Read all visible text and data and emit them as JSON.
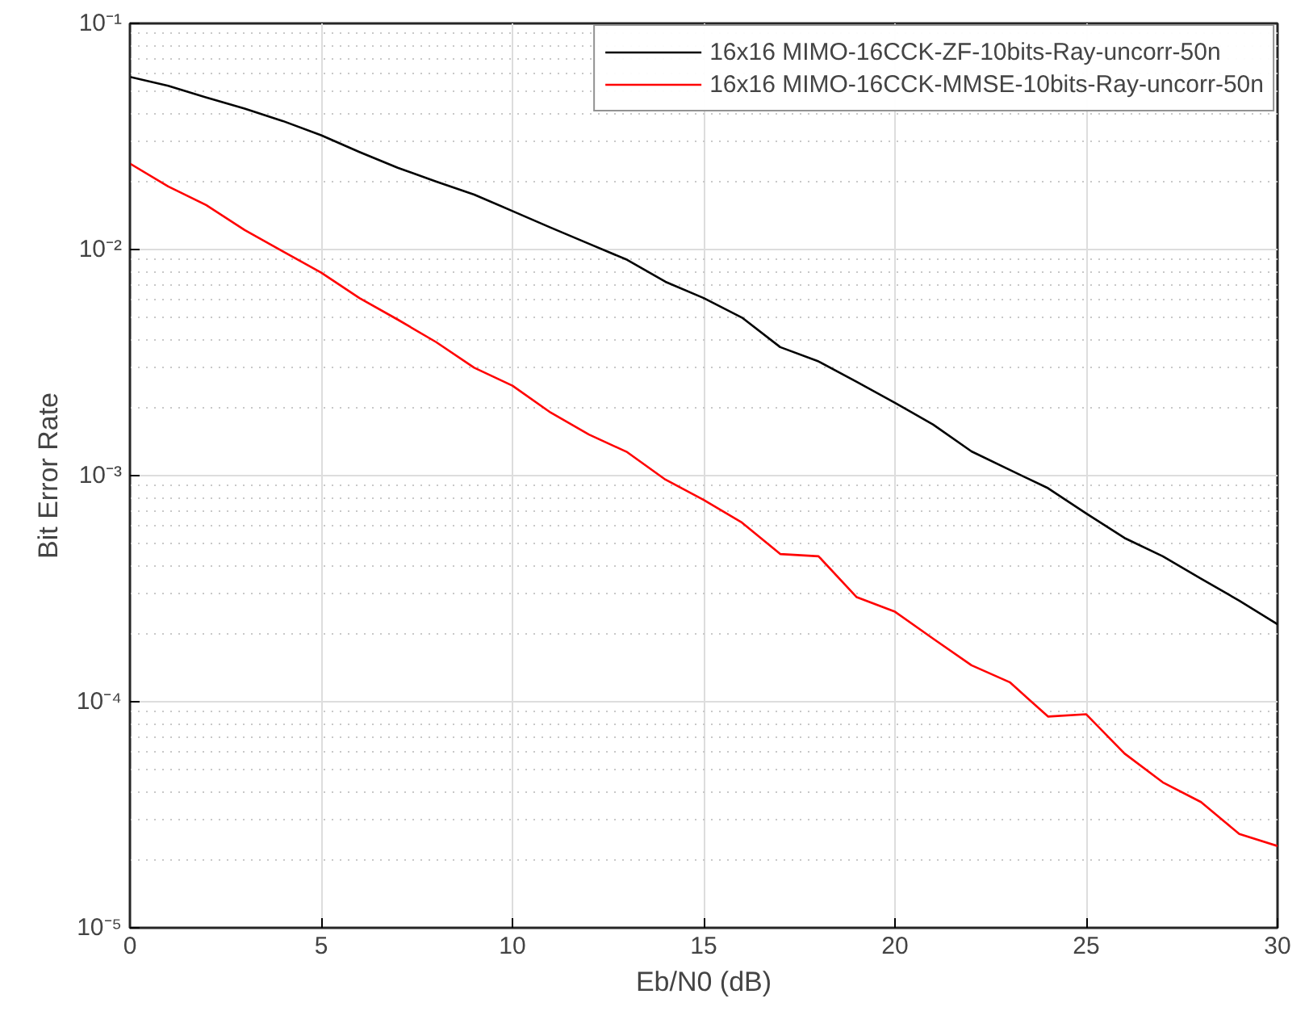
{
  "chart_data": {
    "type": "line",
    "xlabel": "Eb/N0 (dB)",
    "ylabel": "Bit Error Rate",
    "log": "y",
    "x": [
      0,
      1,
      2,
      3,
      4,
      5,
      6,
      7,
      8,
      9,
      10,
      11,
      12,
      13,
      14,
      15,
      16,
      17,
      18,
      19,
      20,
      21,
      22,
      23,
      24,
      25,
      26,
      27,
      28,
      29,
      30
    ],
    "series": [
      {
        "name": "16x16 MIMO-16CCK-ZF-10bits-Ray-uncorr-50n",
        "color": "#000000",
        "values": [
          0.058,
          0.053,
          0.047,
          0.042,
          0.037,
          0.032,
          0.027,
          0.023,
          0.02,
          0.0175,
          0.0148,
          0.0125,
          0.0106,
          0.009,
          0.0072,
          0.0061,
          0.005,
          0.0037,
          0.0032,
          0.0026,
          0.0021,
          0.00168,
          0.00128,
          0.00106,
          0.00088,
          0.00068,
          0.00053,
          0.00044,
          0.00035,
          0.00028,
          0.00022
        ]
      },
      {
        "name": "16x16 MIMO-16CCK-MMSE-10bits-Ray-uncorr-50n",
        "color": "#ff0000",
        "values": [
          0.024,
          0.019,
          0.0157,
          0.0122,
          0.0098,
          0.0079,
          0.0061,
          0.0049,
          0.0039,
          0.003,
          0.0025,
          0.0019,
          0.00152,
          0.00127,
          0.00096,
          0.00078,
          0.00062,
          0.00045,
          0.00044,
          0.00029,
          0.00025,
          0.00019,
          0.000145,
          0.000122,
          8.6e-05,
          8.8e-05,
          5.9e-05,
          4.4e-05,
          3.6e-05,
          2.6e-05,
          2.3e-05
        ]
      }
    ],
    "xlim": [
      0,
      30
    ],
    "xticks": [
      0,
      5,
      10,
      15,
      20,
      25,
      30
    ],
    "ylim": [
      1e-05,
      0.1
    ],
    "yticks": [
      {
        "value": 1e-05,
        "label": "10⁻⁵"
      },
      {
        "value": 0.0001,
        "label": "10⁻⁴"
      },
      {
        "value": 0.001,
        "label": "10⁻³"
      },
      {
        "value": 0.01,
        "label": "10⁻²"
      },
      {
        "value": 0.1,
        "label": "10⁻¹"
      }
    ],
    "grid": true,
    "legend": "top right",
    "marker": "none",
    "line_style": "solid"
  }
}
